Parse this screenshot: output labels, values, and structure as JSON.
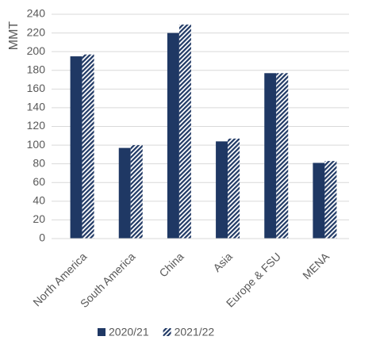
{
  "chart_data": {
    "type": "bar",
    "ylabel": "MMT",
    "categories": [
      "North America",
      "South America",
      "China",
      "Asia",
      "Europe & FSU",
      "MENA"
    ],
    "series": [
      {
        "name": "2020/21",
        "color": "#1f3864",
        "pattern": "solid",
        "values": [
          195,
          97,
          220,
          104,
          177,
          81
        ]
      },
      {
        "name": "2021/22",
        "color": "#1f3864",
        "pattern": "hatch",
        "values": [
          197,
          100,
          229,
          107,
          177,
          83
        ]
      }
    ],
    "ylim": [
      0,
      240
    ],
    "yticks": [
      0,
      20,
      40,
      60,
      80,
      100,
      120,
      140,
      160,
      180,
      200,
      220,
      240
    ],
    "grid": true,
    "legend": "bottom"
  }
}
